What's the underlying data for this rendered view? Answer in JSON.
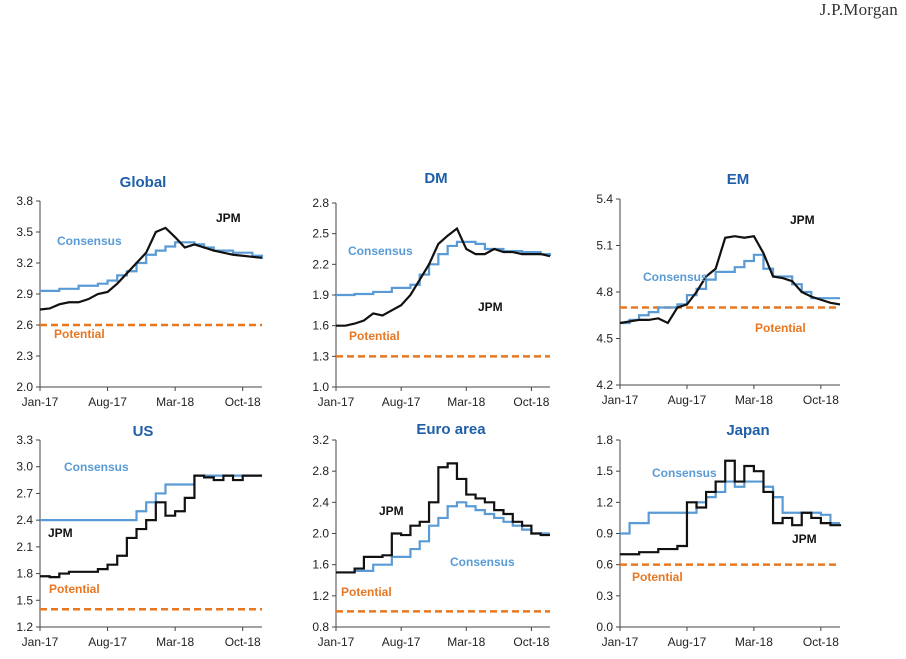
{
  "brand": "J.P.Morgan",
  "colors": {
    "jpm": "#111111",
    "consensus": "#5a9bd5",
    "potential": "#e87722",
    "title": "#1f5fa8"
  },
  "x_labels": [
    "Jan-17",
    "Aug-17",
    "Mar-18",
    "Oct-18"
  ],
  "chart_data": [
    {
      "type": "line",
      "title": "Global",
      "ylim": [
        2.0,
        3.8
      ],
      "yticks": [
        "2.0",
        "2.3",
        "2.6",
        "2.9",
        "3.2",
        "3.5",
        "3.8"
      ],
      "xticks": [
        "Jan-17",
        "Aug-17",
        "Mar-18",
        "Oct-18"
      ],
      "labels": {
        "jpm": "JPM",
        "consensus": "Consensus",
        "potential": "Potential"
      },
      "potential": 2.6,
      "series": [
        {
          "name": "JPM",
          "step": false,
          "points": [
            [
              0,
              2.75
            ],
            [
              1,
              2.76
            ],
            [
              2,
              2.8
            ],
            [
              3,
              2.82
            ],
            [
              4,
              2.82
            ],
            [
              5,
              2.85
            ],
            [
              6,
              2.9
            ],
            [
              7,
              2.92
            ],
            [
              8,
              3.0
            ],
            [
              9,
              3.1
            ],
            [
              10,
              3.2
            ],
            [
              11,
              3.3
            ],
            [
              12,
              3.5
            ],
            [
              13,
              3.54
            ],
            [
              14,
              3.45
            ],
            [
              15,
              3.35
            ],
            [
              16,
              3.38
            ],
            [
              17,
              3.35
            ],
            [
              18,
              3.32
            ],
            [
              19,
              3.3
            ],
            [
              20,
              3.28
            ],
            [
              21,
              3.27
            ],
            [
              22,
              3.26
            ],
            [
              23,
              3.25
            ]
          ]
        },
        {
          "name": "Consensus",
          "step": true,
          "points": [
            [
              0,
              2.93
            ],
            [
              2,
              2.95
            ],
            [
              4,
              2.98
            ],
            [
              6,
              3.0
            ],
            [
              7,
              3.03
            ],
            [
              8,
              3.08
            ],
            [
              9,
              3.12
            ],
            [
              10,
              3.2
            ],
            [
              11,
              3.28
            ],
            [
              12,
              3.32
            ],
            [
              13,
              3.36
            ],
            [
              14,
              3.4
            ],
            [
              15,
              3.4
            ],
            [
              16,
              3.38
            ],
            [
              17,
              3.35
            ],
            [
              18,
              3.32
            ],
            [
              20,
              3.3
            ],
            [
              22,
              3.27
            ],
            [
              23,
              3.24
            ]
          ]
        }
      ]
    },
    {
      "type": "line",
      "title": "DM",
      "ylim": [
        1.0,
        2.8
      ],
      "yticks": [
        "1.0",
        "1.3",
        "1.6",
        "1.9",
        "2.2",
        "2.5",
        "2.8"
      ],
      "xticks": [
        "Jan-17",
        "Aug-17",
        "Mar-18",
        "Oct-18"
      ],
      "labels": {
        "jpm": "JPM",
        "consensus": "Consensus",
        "potential": "Potential"
      },
      "potential": 1.3,
      "series": [
        {
          "name": "JPM",
          "step": false,
          "points": [
            [
              0,
              1.6
            ],
            [
              1,
              1.6
            ],
            [
              2,
              1.62
            ],
            [
              3,
              1.65
            ],
            [
              4,
              1.72
            ],
            [
              5,
              1.7
            ],
            [
              6,
              1.75
            ],
            [
              7,
              1.8
            ],
            [
              8,
              1.9
            ],
            [
              9,
              2.05
            ],
            [
              10,
              2.2
            ],
            [
              11,
              2.4
            ],
            [
              12,
              2.48
            ],
            [
              13,
              2.55
            ],
            [
              14,
              2.35
            ],
            [
              15,
              2.3
            ],
            [
              16,
              2.3
            ],
            [
              17,
              2.35
            ],
            [
              18,
              2.32
            ],
            [
              19,
              2.32
            ],
            [
              20,
              2.3
            ],
            [
              21,
              2.3
            ],
            [
              22,
              2.3
            ],
            [
              23,
              2.28
            ]
          ]
        },
        {
          "name": "Consensus",
          "step": true,
          "points": [
            [
              0,
              1.9
            ],
            [
              2,
              1.91
            ],
            [
              4,
              1.93
            ],
            [
              6,
              1.97
            ],
            [
              8,
              2.0
            ],
            [
              9,
              2.1
            ],
            [
              10,
              2.2
            ],
            [
              11,
              2.3
            ],
            [
              12,
              2.38
            ],
            [
              13,
              2.42
            ],
            [
              15,
              2.4
            ],
            [
              16,
              2.35
            ],
            [
              18,
              2.33
            ],
            [
              20,
              2.32
            ],
            [
              22,
              2.3
            ],
            [
              23,
              2.28
            ]
          ]
        }
      ]
    },
    {
      "type": "line",
      "title": "EM",
      "ylim": [
        4.2,
        5.4
      ],
      "yticks": [
        "4.2",
        "4.5",
        "4.8",
        "5.1",
        "5.4"
      ],
      "xticks": [
        "Jan-17",
        "Aug-17",
        "Mar-18",
        "Oct-18"
      ],
      "labels": {
        "jpm": "JPM",
        "consensus": "Consensus",
        "potential": "Potential"
      },
      "potential": 4.7,
      "series": [
        {
          "name": "JPM",
          "step": false,
          "points": [
            [
              0,
              4.6
            ],
            [
              1,
              4.61
            ],
            [
              2,
              4.62
            ],
            [
              3,
              4.62
            ],
            [
              4,
              4.63
            ],
            [
              5,
              4.6
            ],
            [
              6,
              4.7
            ],
            [
              7,
              4.72
            ],
            [
              8,
              4.8
            ],
            [
              9,
              4.9
            ],
            [
              10,
              4.95
            ],
            [
              11,
              5.15
            ],
            [
              12,
              5.16
            ],
            [
              13,
              5.15
            ],
            [
              14,
              5.16
            ],
            [
              15,
              5.05
            ],
            [
              16,
              4.9
            ],
            [
              17,
              4.89
            ],
            [
              18,
              4.87
            ],
            [
              19,
              4.8
            ],
            [
              20,
              4.77
            ],
            [
              21,
              4.75
            ],
            [
              22,
              4.73
            ],
            [
              23,
              4.72
            ]
          ]
        },
        {
          "name": "Consensus",
          "step": true,
          "points": [
            [
              0,
              4.6
            ],
            [
              1,
              4.62
            ],
            [
              2,
              4.65
            ],
            [
              3,
              4.67
            ],
            [
              4,
              4.7
            ],
            [
              6,
              4.72
            ],
            [
              7,
              4.78
            ],
            [
              8,
              4.82
            ],
            [
              9,
              4.88
            ],
            [
              10,
              4.93
            ],
            [
              12,
              4.96
            ],
            [
              13,
              5.0
            ],
            [
              14,
              5.04
            ],
            [
              15,
              4.95
            ],
            [
              16,
              4.9
            ],
            [
              18,
              4.85
            ],
            [
              19,
              4.8
            ],
            [
              20,
              4.76
            ],
            [
              23,
              4.76
            ]
          ]
        }
      ]
    },
    {
      "type": "line",
      "title": "US",
      "ylim": [
        1.2,
        3.3
      ],
      "yticks": [
        "1.2",
        "1.5",
        "1.8",
        "2.1",
        "2.4",
        "2.7",
        "3.0",
        "3.3"
      ],
      "xticks": [
        "Jan-17",
        "Aug-17",
        "Mar-18",
        "Oct-18"
      ],
      "labels": {
        "jpm": "JPM",
        "consensus": "Consensus",
        "potential": "Potential"
      },
      "potential": 1.4,
      "series": [
        {
          "name": "JPM",
          "step": true,
          "points": [
            [
              0,
              1.77
            ],
            [
              1,
              1.76
            ],
            [
              2,
              1.8
            ],
            [
              3,
              1.82
            ],
            [
              6,
              1.85
            ],
            [
              7,
              1.9
            ],
            [
              8,
              2.0
            ],
            [
              9,
              2.2
            ],
            [
              10,
              2.3
            ],
            [
              11,
              2.4
            ],
            [
              12,
              2.6
            ],
            [
              13,
              2.45
            ],
            [
              14,
              2.5
            ],
            [
              15,
              2.65
            ],
            [
              16,
              2.9
            ],
            [
              17,
              2.88
            ],
            [
              18,
              2.85
            ],
            [
              19,
              2.9
            ],
            [
              20,
              2.85
            ],
            [
              21,
              2.9
            ],
            [
              23,
              2.9
            ]
          ]
        },
        {
          "name": "Consensus",
          "step": true,
          "points": [
            [
              0,
              2.4
            ],
            [
              9,
              2.4
            ],
            [
              10,
              2.5
            ],
            [
              11,
              2.6
            ],
            [
              12,
              2.7
            ],
            [
              13,
              2.8
            ],
            [
              16,
              2.9
            ],
            [
              23,
              2.9
            ]
          ]
        }
      ]
    },
    {
      "type": "line",
      "title": "Euro area",
      "ylim": [
        0.8,
        3.2
      ],
      "yticks": [
        "0.8",
        "1.2",
        "1.6",
        "2.0",
        "2.4",
        "2.8",
        "3.2"
      ],
      "xticks": [
        "Jan-17",
        "Aug-17",
        "Mar-18",
        "Oct-18"
      ],
      "labels": {
        "jpm": "JPM",
        "consensus": "Consensus",
        "potential": "Potential"
      },
      "potential": 1.0,
      "series": [
        {
          "name": "JPM",
          "step": true,
          "points": [
            [
              0,
              1.5
            ],
            [
              2,
              1.55
            ],
            [
              3,
              1.7
            ],
            [
              5,
              1.72
            ],
            [
              6,
              2.0
            ],
            [
              7,
              1.98
            ],
            [
              8,
              2.1
            ],
            [
              9,
              2.15
            ],
            [
              10,
              2.4
            ],
            [
              11,
              2.85
            ],
            [
              12,
              2.9
            ],
            [
              13,
              2.7
            ],
            [
              14,
              2.5
            ],
            [
              15,
              2.45
            ],
            [
              16,
              2.4
            ],
            [
              17,
              2.3
            ],
            [
              18,
              2.25
            ],
            [
              19,
              2.15
            ],
            [
              20,
              2.1
            ],
            [
              21,
              2.0
            ],
            [
              22,
              1.98
            ],
            [
              23,
              1.98
            ]
          ]
        },
        {
          "name": "Consensus",
          "step": true,
          "points": [
            [
              0,
              1.5
            ],
            [
              2,
              1.52
            ],
            [
              4,
              1.6
            ],
            [
              6,
              1.7
            ],
            [
              8,
              1.8
            ],
            [
              9,
              1.9
            ],
            [
              10,
              2.1
            ],
            [
              11,
              2.2
            ],
            [
              12,
              2.35
            ],
            [
              13,
              2.4
            ],
            [
              14,
              2.35
            ],
            [
              15,
              2.3
            ],
            [
              16,
              2.25
            ],
            [
              17,
              2.2
            ],
            [
              18,
              2.15
            ],
            [
              19,
              2.1
            ],
            [
              20,
              2.05
            ],
            [
              21,
              2.0
            ],
            [
              23,
              2.0
            ]
          ]
        }
      ]
    },
    {
      "type": "line",
      "title": "Japan",
      "ylim": [
        0.0,
        1.8
      ],
      "yticks": [
        "0.0",
        "0.3",
        "0.6",
        "0.9",
        "1.2",
        "1.5",
        "1.8"
      ],
      "xticks": [
        "Jan-17",
        "Aug-17",
        "Mar-18",
        "Oct-18"
      ],
      "labels": {
        "jpm": "JPM",
        "consensus": "Consensus",
        "potential": "Potential"
      },
      "potential": 0.6,
      "series": [
        {
          "name": "JPM",
          "step": true,
          "points": [
            [
              0,
              0.7
            ],
            [
              2,
              0.72
            ],
            [
              4,
              0.75
            ],
            [
              6,
              0.78
            ],
            [
              7,
              1.2
            ],
            [
              8,
              1.15
            ],
            [
              9,
              1.3
            ],
            [
              10,
              1.4
            ],
            [
              11,
              1.6
            ],
            [
              12,
              1.4
            ],
            [
              13,
              1.55
            ],
            [
              14,
              1.5
            ],
            [
              15,
              1.3
            ],
            [
              16,
              1.0
            ],
            [
              17,
              1.05
            ],
            [
              18,
              0.98
            ],
            [
              19,
              1.1
            ],
            [
              20,
              1.05
            ],
            [
              21,
              1.0
            ],
            [
              22,
              0.98
            ],
            [
              23,
              0.97
            ]
          ]
        },
        {
          "name": "Consensus",
          "step": true,
          "points": [
            [
              0,
              0.9
            ],
            [
              1,
              1.0
            ],
            [
              3,
              1.1
            ],
            [
              6,
              1.1
            ],
            [
              8,
              1.2
            ],
            [
              9,
              1.25
            ],
            [
              10,
              1.3
            ],
            [
              11,
              1.4
            ],
            [
              12,
              1.35
            ],
            [
              13,
              1.4
            ],
            [
              15,
              1.35
            ],
            [
              16,
              1.25
            ],
            [
              17,
              1.1
            ],
            [
              21,
              1.08
            ],
            [
              22,
              1.0
            ],
            [
              23,
              1.0
            ]
          ]
        }
      ]
    }
  ]
}
